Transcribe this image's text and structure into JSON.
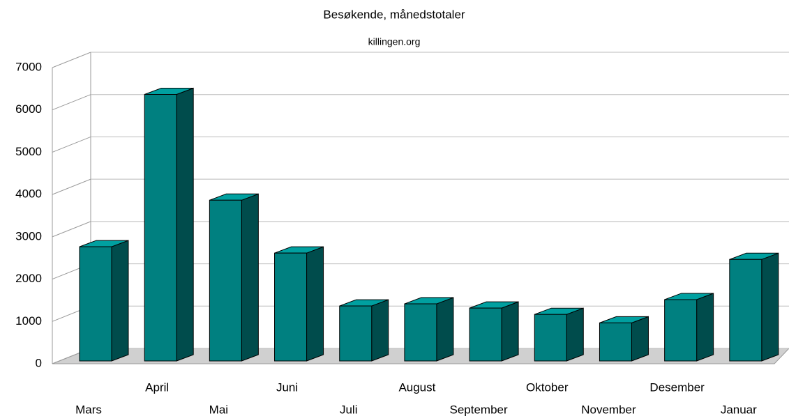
{
  "chart_data": {
    "type": "bar3d",
    "title": "Besøkende, månedstotaler",
    "subtitle": "killingen.org",
    "categories": [
      "Mars",
      "April",
      "Mai",
      "Juni",
      "Juli",
      "August",
      "September",
      "Oktober",
      "November",
      "Desember",
      "Januar"
    ],
    "values": [
      2700,
      6300,
      3800,
      2550,
      1300,
      1350,
      1250,
      1100,
      900,
      1450,
      2400
    ],
    "color": "#008080",
    "ylim": [
      0,
      7000
    ],
    "yticks": [
      0,
      1000,
      2000,
      3000,
      4000,
      5000,
      6000,
      7000
    ],
    "grid": true
  }
}
